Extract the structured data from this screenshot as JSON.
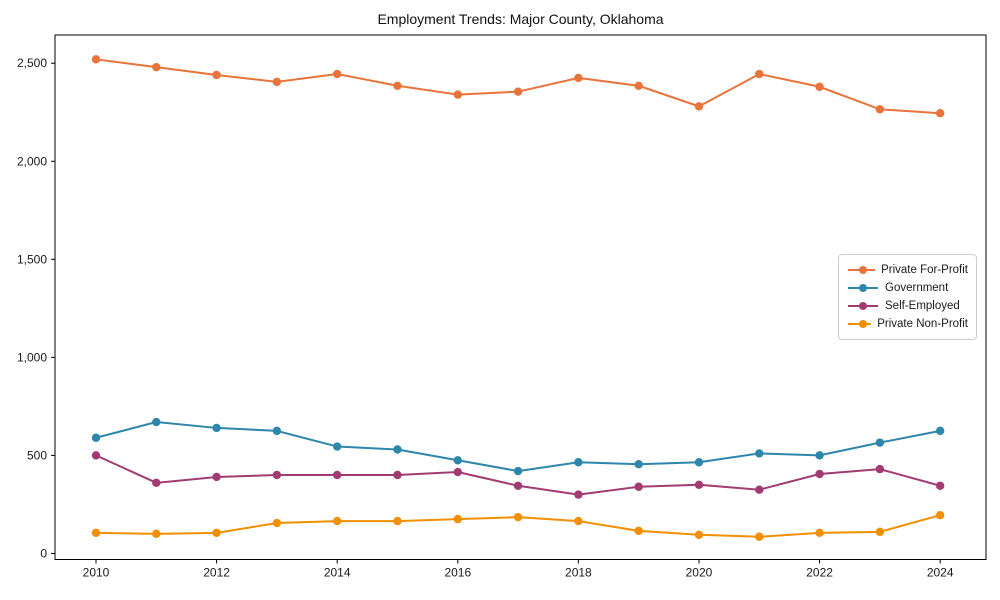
{
  "title": "Employment Trends: Major County, Oklahoma",
  "chart_data": {
    "type": "line",
    "title": "Employment Trends: Major County, Oklahoma",
    "xlabel": "",
    "ylabel": "",
    "grid": false,
    "legend_position": "center right",
    "marker": "circle",
    "x": [
      2010,
      2011,
      2012,
      2013,
      2014,
      2015,
      2016,
      2017,
      2018,
      2019,
      2020,
      2021,
      2022,
      2023,
      2024
    ],
    "x_ticks": [
      2010,
      2012,
      2014,
      2016,
      2018,
      2020,
      2022,
      2024
    ],
    "y_ticks": [
      0,
      500,
      1000,
      1500,
      2000,
      2500
    ],
    "y_tick_labels": [
      "0",
      "500",
      "1,000",
      "1,500",
      "2,000",
      "2,500"
    ],
    "xlim": [
      2009.32,
      2024.76
    ],
    "ylim": [
      -31,
      2644
    ],
    "series": [
      {
        "name": "Private For-Profit",
        "color": "#e8743b",
        "values": [
          2520,
          2480,
          2440,
          2405,
          2445,
          2385,
          2340,
          2355,
          2425,
          2385,
          2280,
          2445,
          2380,
          2265,
          2245
        ]
      },
      {
        "name": "Government",
        "color": "#2e86ab",
        "values": [
          590,
          670,
          640,
          625,
          545,
          530,
          475,
          420,
          465,
          455,
          465,
          510,
          500,
          565,
          625
        ]
      },
      {
        "name": "Self-Employed",
        "color": "#a23b72",
        "values": [
          500,
          360,
          390,
          400,
          400,
          400,
          415,
          345,
          300,
          340,
          350,
          325,
          405,
          430,
          345
        ]
      },
      {
        "name": "Private Non-Profit",
        "color": "#f18f01",
        "values": [
          105,
          100,
          105,
          155,
          165,
          165,
          175,
          185,
          165,
          115,
          95,
          85,
          105,
          110,
          195
        ]
      }
    ]
  }
}
